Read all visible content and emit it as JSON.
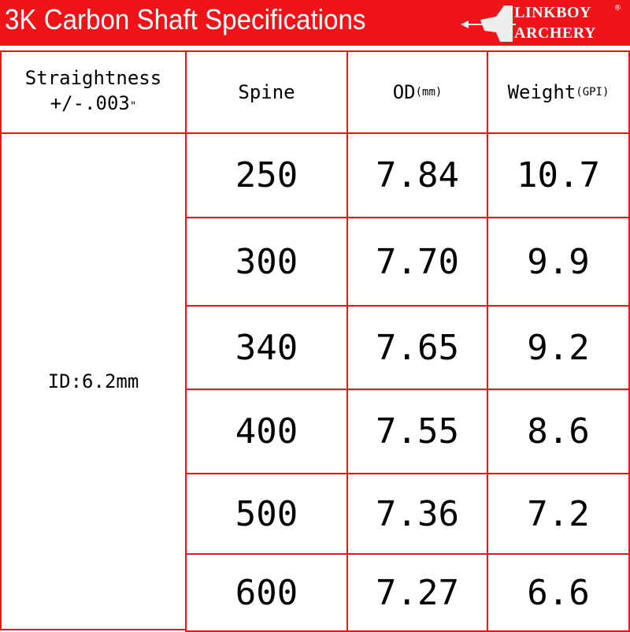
{
  "title": "3K Carbon Shaft Specifications",
  "logo": {
    "line1": "LINKBOY",
    "line2": "ARCHERY",
    "mark": "®"
  },
  "colors": {
    "brand": "#f01418"
  },
  "headers": {
    "straightness": "Straightness",
    "straightness_value_main": "+/-.003",
    "straightness_unit": "\"",
    "spine": "Spine",
    "od": "OD",
    "od_unit": "(mm)",
    "weight": "Weight",
    "weight_unit": "(GPI)"
  },
  "id_value": "ID:6.2mm",
  "rows": [
    {
      "spine": "250",
      "od": "7.84",
      "weight": "10.7"
    },
    {
      "spine": "300",
      "od": "7.70",
      "weight": "9.9"
    },
    {
      "spine": "340",
      "od": "7.65",
      "weight": "9.2"
    },
    {
      "spine": "400",
      "od": "7.55",
      "weight": "8.6"
    },
    {
      "spine": "500",
      "od": "7.36",
      "weight": "7.2"
    },
    {
      "spine": "600",
      "od": "7.27",
      "weight": "6.6"
    }
  ]
}
